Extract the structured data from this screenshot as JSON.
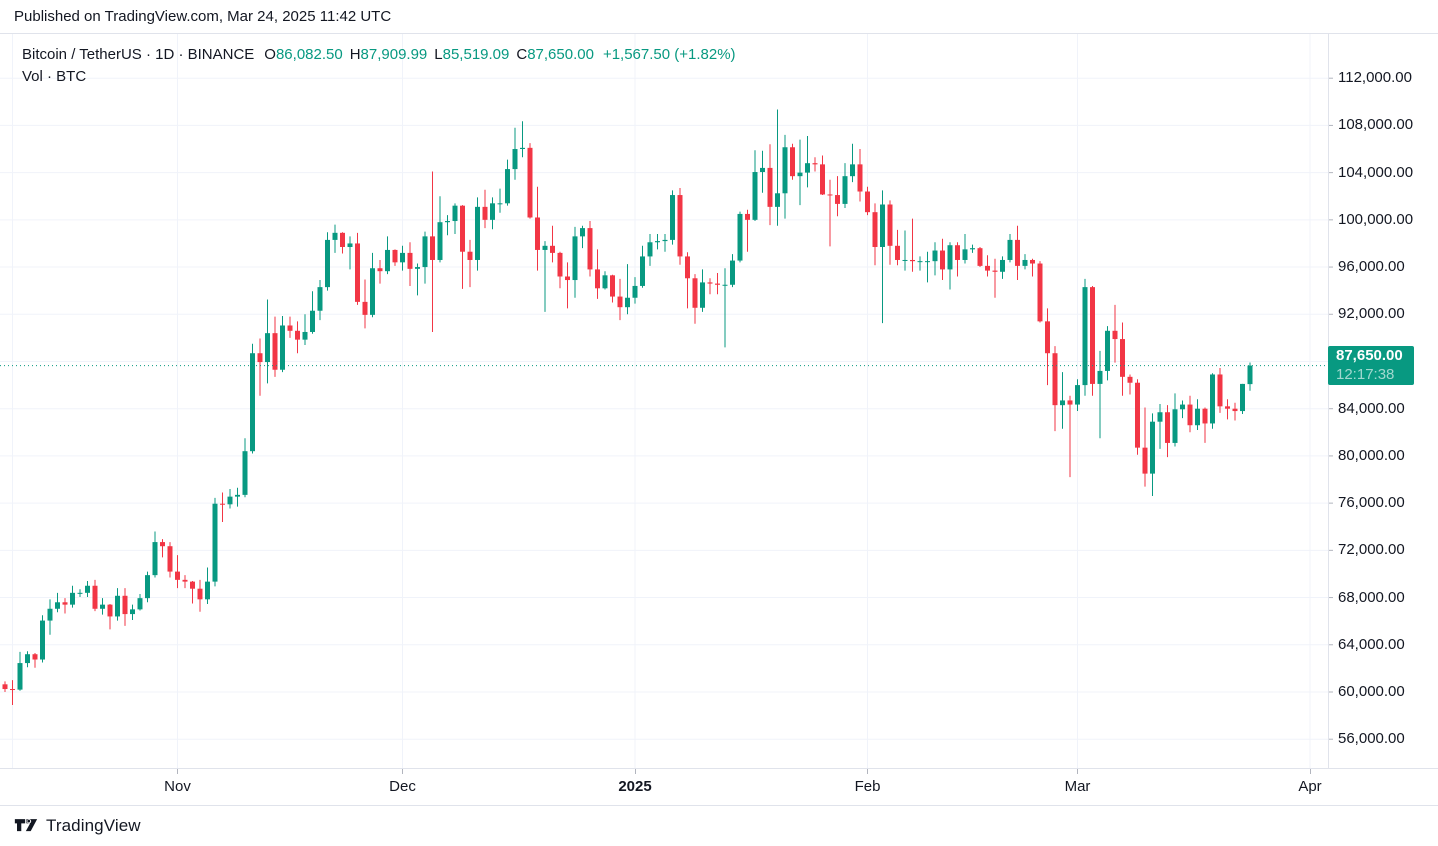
{
  "published_bar": {
    "text": "Published on TradingView.com, Mar 24, 2025 11:42 UTC"
  },
  "legend": {
    "title": "Bitcoin / TetherUS · 1D · BINANCE",
    "ohlc": [
      {
        "key": "O",
        "value": "86,082.50"
      },
      {
        "key": "H",
        "value": "87,909.99"
      },
      {
        "key": "L",
        "value": "85,519.09"
      },
      {
        "key": "C",
        "value": "87,650.00"
      }
    ],
    "change": "+1,567.50 (+1.82%)",
    "indicator": "Vol · BTC"
  },
  "price_label": {
    "price": "87,650.00",
    "countdown": "12:17:38",
    "value": 87650
  },
  "footer": {
    "brand": "TradingView"
  },
  "colors": {
    "up": "#089981",
    "down": "#f23645",
    "accent": "#089981",
    "text": "#131722",
    "grid": "#f0f3fa",
    "border": "#e0e3eb",
    "tick": "#b2b5be"
  },
  "chart_data": {
    "type": "candlestick",
    "title": "Bitcoin / TetherUS · 1D · BINANCE",
    "symbol": "Bitcoin / TetherUS",
    "interval": "1D",
    "exchange": "BINANCE",
    "last_price": 87650,
    "y_axis": {
      "min": 56000,
      "max": 112000,
      "tick_step": 4000,
      "ticks": [
        {
          "value": 112000,
          "label": "112,000.00"
        },
        {
          "value": 108000,
          "label": "108,000.00"
        },
        {
          "value": 104000,
          "label": "104,000.00"
        },
        {
          "value": 100000,
          "label": "100,000.00"
        },
        {
          "value": 96000,
          "label": "96,000.00"
        },
        {
          "value": 92000,
          "label": "92,000.00"
        },
        {
          "value": 88000,
          "label": "88,000.00"
        },
        {
          "value": 84000,
          "label": "84,000.00"
        },
        {
          "value": 80000,
          "label": "80,000.00"
        },
        {
          "value": 76000,
          "label": "76,000.00"
        },
        {
          "value": 72000,
          "label": "72,000.00"
        },
        {
          "value": 68000,
          "label": "68,000.00"
        },
        {
          "value": 64000,
          "label": "64,000.00"
        },
        {
          "value": 60000,
          "label": "60,000.00"
        },
        {
          "value": 56000,
          "label": "56,000.00"
        }
      ]
    },
    "x_axis": {
      "ticks": [
        {
          "label": "",
          "index": 1
        },
        {
          "label": "Nov",
          "index": 23
        },
        {
          "label": "Dec",
          "index": 53
        },
        {
          "label": "2025",
          "index": 84,
          "bold": true
        },
        {
          "label": "Feb",
          "index": 115
        },
        {
          "label": "Mar",
          "index": 143
        },
        {
          "label": "Apr",
          "index": 174
        }
      ]
    },
    "candles": [
      [
        "Oct 9",
        60650,
        60900,
        60000,
        60250
      ],
      [
        "Oct 10",
        60250,
        61000,
        58900,
        60200
      ],
      [
        "Oct 11",
        60200,
        63400,
        60100,
        62450
      ],
      [
        "Oct 12",
        62450,
        63450,
        62100,
        63200
      ],
      [
        "Oct 13",
        63200,
        63300,
        62050,
        62750
      ],
      [
        "Oct 14",
        62750,
        66500,
        62500,
        66050
      ],
      [
        "Oct 15",
        66050,
        67850,
        64850,
        67050
      ],
      [
        "Oct 16",
        67050,
        68400,
        66750,
        67600
      ],
      [
        "Oct 17",
        67600,
        67950,
        66650,
        67400
      ],
      [
        "Oct 18",
        67400,
        69000,
        67150,
        68400
      ],
      [
        "Oct 19",
        68400,
        68700,
        68050,
        68400
      ],
      [
        "Oct 20",
        68400,
        69400,
        68050,
        69000
      ],
      [
        "Oct 21",
        69000,
        69500,
        66850,
        67050
      ],
      [
        "Oct 22",
        67050,
        67950,
        66550,
        67400
      ],
      [
        "Oct 23",
        67400,
        67450,
        65300,
        66400
      ],
      [
        "Oct 24",
        66400,
        68800,
        66050,
        68150
      ],
      [
        "Oct 25",
        68150,
        68800,
        65600,
        66600
      ],
      [
        "Oct 26",
        66600,
        67400,
        66100,
        67000
      ],
      [
        "Oct 27",
        67000,
        68300,
        66900,
        67950
      ],
      [
        "Oct 28",
        67950,
        70200,
        67600,
        69900
      ],
      [
        "Oct 29",
        69900,
        73600,
        69700,
        72700
      ],
      [
        "Oct 30",
        72700,
        72950,
        71400,
        72350
      ],
      [
        "Oct 31",
        72350,
        72700,
        69700,
        70200
      ],
      [
        "Nov 1",
        70200,
        71600,
        68800,
        69500
      ],
      [
        "Nov 2",
        69500,
        69900,
        68800,
        69350
      ],
      [
        "Nov 3",
        69350,
        69400,
        67500,
        68750
      ],
      [
        "Nov 4",
        68750,
        69500,
        66800,
        67850
      ],
      [
        "Nov 5",
        67850,
        70550,
        67450,
        69350
      ],
      [
        "Nov 6",
        69350,
        76450,
        68950,
        75950
      ],
      [
        "Nov 7",
        75950,
        76900,
        74400,
        75900
      ],
      [
        "Nov 8",
        75900,
        77200,
        75550,
        76550
      ],
      [
        "Nov 9",
        76550,
        77300,
        75700,
        76700
      ],
      [
        "Nov 10",
        76700,
        81500,
        76500,
        80400
      ],
      [
        "Nov 11",
        80400,
        89500,
        80200,
        88700
      ],
      [
        "Nov 12",
        88700,
        89950,
        85100,
        87950
      ],
      [
        "Nov 13",
        87950,
        93250,
        86150,
        90400
      ],
      [
        "Nov 14",
        90400,
        91800,
        86700,
        87300
      ],
      [
        "Nov 15",
        87300,
        91850,
        87100,
        91050
      ],
      [
        "Nov 16",
        91050,
        91800,
        90000,
        90600
      ],
      [
        "Nov 17",
        90600,
        91400,
        88700,
        89850
      ],
      [
        "Nov 18",
        89850,
        92000,
        89400,
        90500
      ],
      [
        "Nov 19",
        90500,
        93950,
        90350,
        92300
      ],
      [
        "Nov 20",
        92300,
        94900,
        91500,
        94300
      ],
      [
        "Nov 21",
        94300,
        98950,
        94000,
        98300
      ],
      [
        "Nov 22",
        98300,
        99600,
        97200,
        98900
      ],
      [
        "Nov 23",
        98900,
        98950,
        97150,
        97700
      ],
      [
        "Nov 24",
        97700,
        98600,
        95800,
        98000
      ],
      [
        "Nov 25",
        98000,
        98900,
        92800,
        93050
      ],
      [
        "Nov 26",
        93050,
        94950,
        90800,
        91950
      ],
      [
        "Nov 27",
        91950,
        97200,
        91750,
        95900
      ],
      [
        "Nov 28",
        95900,
        96600,
        94600,
        95650
      ],
      [
        "Nov 29",
        95650,
        98600,
        95400,
        97450
      ],
      [
        "Nov 30",
        97450,
        97500,
        96100,
        96400
      ],
      [
        "Dec 1",
        96400,
        97800,
        95700,
        97200
      ],
      [
        "Dec 2",
        97200,
        98100,
        94400,
        95850
      ],
      [
        "Dec 3",
        95850,
        96300,
        93600,
        96000
      ],
      [
        "Dec 4",
        96000,
        99000,
        94600,
        98600
      ],
      [
        "Dec 5",
        98600,
        104100,
        90500,
        96600
      ],
      [
        "Dec 6",
        96600,
        102000,
        96400,
        99800
      ],
      [
        "Dec 7",
        99800,
        100400,
        98700,
        99900
      ],
      [
        "Dec 8",
        99900,
        101400,
        98800,
        101200
      ],
      [
        "Dec 9",
        101200,
        101250,
        94150,
        97300
      ],
      [
        "Dec 10",
        97300,
        98300,
        94300,
        96600
      ],
      [
        "Dec 11",
        96600,
        101900,
        95700,
        101100
      ],
      [
        "Dec 12",
        101100,
        102550,
        99300,
        100000
      ],
      [
        "Dec 13",
        100000,
        101900,
        99200,
        101400
      ],
      [
        "Dec 14",
        101400,
        102650,
        100600,
        101400
      ],
      [
        "Dec 15",
        101400,
        105100,
        101200,
        104300
      ],
      [
        "Dec 16",
        104300,
        107800,
        103400,
        106000
      ],
      [
        "Dec 17",
        106000,
        108350,
        105300,
        106100
      ],
      [
        "Dec 18",
        106100,
        106500,
        100100,
        100200
      ],
      [
        "Dec 19",
        100200,
        102800,
        95700,
        97450
      ],
      [
        "Dec 20",
        97450,
        98200,
        92200,
        97800
      ],
      [
        "Dec 21",
        97800,
        99500,
        96400,
        97200
      ],
      [
        "Dec 22",
        97200,
        97300,
        94200,
        95200
      ],
      [
        "Dec 23",
        95200,
        96400,
        92500,
        94900
      ],
      [
        "Dec 24",
        94900,
        99400,
        93400,
        98600
      ],
      [
        "Dec 25",
        98600,
        99500,
        97600,
        99300
      ],
      [
        "Dec 26",
        99300,
        99900,
        95200,
        95800
      ],
      [
        "Dec 27",
        95800,
        97500,
        93300,
        94200
      ],
      [
        "Dec 28",
        94200,
        95650,
        94100,
        95300
      ],
      [
        "Dec 29",
        95300,
        95350,
        93000,
        93500
      ],
      [
        "Dec 30",
        93500,
        95000,
        91500,
        92600
      ],
      [
        "Dec 31",
        92600,
        96250,
        92000,
        93400
      ],
      [
        "Jan 1",
        93400,
        95150,
        92900,
        94400
      ],
      [
        "Jan 2",
        94400,
        97800,
        94250,
        96900
      ],
      [
        "Jan 3",
        96900,
        98800,
        96100,
        98100
      ],
      [
        "Jan 4",
        98100,
        98800,
        97500,
        98200
      ],
      [
        "Jan 5",
        98200,
        98800,
        97300,
        98300
      ],
      [
        "Jan 6",
        98300,
        102500,
        97900,
        102100
      ],
      [
        "Jan 7",
        102100,
        102700,
        96200,
        96900
      ],
      [
        "Jan 8",
        96900,
        97250,
        92500,
        95050
      ],
      [
        "Jan 9",
        95050,
        95400,
        91200,
        92550
      ],
      [
        "Jan 10",
        92550,
        95800,
        92200,
        94700
      ],
      [
        "Jan 11",
        94700,
        95050,
        93700,
        94600
      ],
      [
        "Jan 12",
        94600,
        95500,
        93700,
        94500
      ],
      [
        "Jan 13",
        94500,
        95900,
        89200,
        94500
      ],
      [
        "Jan 14",
        94500,
        97100,
        94300,
        96550
      ],
      [
        "Jan 15",
        96550,
        100700,
        96400,
        100500
      ],
      [
        "Jan 16",
        100500,
        100850,
        97300,
        100000
      ],
      [
        "Jan 17",
        100000,
        105900,
        99900,
        104050
      ],
      [
        "Jan 18",
        104050,
        105850,
        102300,
        104400
      ],
      [
        "Jan 19",
        104400,
        106400,
        99550,
        101100
      ],
      [
        "Jan 20",
        101100,
        109350,
        99500,
        102250
      ],
      [
        "Jan 21",
        102250,
        107200,
        100100,
        106150
      ],
      [
        "Jan 22",
        106150,
        106450,
        103400,
        103700
      ],
      [
        "Jan 23",
        103700,
        106800,
        101250,
        104000
      ],
      [
        "Jan 24",
        104000,
        107100,
        102750,
        104800
      ],
      [
        "Jan 25",
        104800,
        105300,
        104100,
        104700
      ],
      [
        "Jan 26",
        104700,
        105450,
        102100,
        102150
      ],
      [
        "Jan 27",
        102150,
        103400,
        97750,
        102100
      ],
      [
        "Jan 28",
        102100,
        103700,
        100300,
        101350
      ],
      [
        "Jan 29",
        101350,
        104800,
        101000,
        103700
      ],
      [
        "Jan 30",
        103700,
        106450,
        103200,
        104700
      ],
      [
        "Jan 31",
        104700,
        106000,
        101550,
        102400
      ],
      [
        "Feb 1",
        102400,
        102800,
        100400,
        100650
      ],
      [
        "Feb 2",
        100650,
        101400,
        96150,
        97700
      ],
      [
        "Feb 3",
        97700,
        102500,
        91250,
        101300
      ],
      [
        "Feb 4",
        101300,
        101650,
        96200,
        97800
      ],
      [
        "Feb 5",
        97800,
        99150,
        96150,
        96600
      ],
      [
        "Feb 6",
        96600,
        99100,
        95700,
        96600
      ],
      [
        "Feb 7",
        96600,
        100100,
        95600,
        96500
      ],
      [
        "Feb 8",
        96500,
        96900,
        95700,
        96500
      ],
      [
        "Feb 9",
        96500,
        97300,
        94700,
        96500
      ],
      [
        "Feb 10",
        96500,
        98100,
        95300,
        97400
      ],
      [
        "Feb 11",
        97400,
        98400,
        94900,
        95800
      ],
      [
        "Feb 12",
        95800,
        98100,
        94100,
        97850
      ],
      [
        "Feb 13",
        97850,
        98100,
        95200,
        96600
      ],
      [
        "Feb 14",
        96600,
        98800,
        96300,
        97500
      ],
      [
        "Feb 15",
        97500,
        97900,
        97200,
        97600
      ],
      [
        "Feb 16",
        97600,
        97700,
        96000,
        96100
      ],
      [
        "Feb 17",
        96100,
        97000,
        95200,
        95700
      ],
      [
        "Feb 18",
        95700,
        96700,
        93400,
        95600
      ],
      [
        "Feb 19",
        95600,
        96900,
        95000,
        96600
      ],
      [
        "Feb 20",
        96600,
        98800,
        96400,
        98300
      ],
      [
        "Feb 21",
        98300,
        99500,
        94900,
        96100
      ],
      [
        "Feb 22",
        96100,
        97100,
        95800,
        96600
      ],
      [
        "Feb 23",
        96600,
        96700,
        95200,
        96300
      ],
      [
        "Feb 24",
        96300,
        96500,
        91300,
        91400
      ],
      [
        "Feb 25",
        91400,
        92500,
        86000,
        88700
      ],
      [
        "Feb 26",
        88700,
        89300,
        82100,
        84300
      ],
      [
        "Feb 27",
        84300,
        87100,
        82300,
        84700
      ],
      [
        "Feb 28",
        84700,
        85100,
        78200,
        84350
      ],
      [
        "Mar 1",
        84350,
        86500,
        83800,
        86000
      ],
      [
        "Mar 2",
        86000,
        95000,
        85100,
        94300
      ],
      [
        "Mar 3",
        94300,
        94400,
        85100,
        86100
      ],
      [
        "Mar 4",
        86100,
        88900,
        81500,
        87200
      ],
      [
        "Mar 5",
        87200,
        91000,
        86400,
        90600
      ],
      [
        "Mar 6",
        90600,
        92800,
        87900,
        89900
      ],
      [
        "Mar 7",
        89900,
        91300,
        85100,
        86700
      ],
      [
        "Mar 8",
        86700,
        86900,
        85200,
        86200
      ],
      [
        "Mar 9",
        86200,
        86500,
        80100,
        80700
      ],
      [
        "Mar 10",
        80700,
        84100,
        77400,
        78500
      ],
      [
        "Mar 11",
        78500,
        83600,
        76600,
        82900
      ],
      [
        "Mar 12",
        82900,
        84400,
        80600,
        83700
      ],
      [
        "Mar 13",
        83700,
        84300,
        79900,
        81100
      ],
      [
        "Mar 14",
        81100,
        85300,
        80800,
        83950
      ],
      [
        "Mar 15",
        83950,
        84700,
        83200,
        84350
      ],
      [
        "Mar 16",
        84350,
        85100,
        82000,
        82600
      ],
      [
        "Mar 17",
        82600,
        84800,
        82200,
        84000
      ],
      [
        "Mar 18",
        84000,
        84100,
        81100,
        82750
      ],
      [
        "Mar 19",
        82750,
        87000,
        82300,
        86900
      ],
      [
        "Mar 20",
        86900,
        87450,
        83650,
        84200
      ],
      [
        "Mar 21",
        84200,
        84800,
        83100,
        84000
      ],
      [
        "Mar 22",
        84000,
        84500,
        83000,
        83800
      ],
      [
        "Mar 23",
        83800,
        86100,
        83550,
        86100
      ],
      [
        "Mar 24",
        86082.5,
        87909.99,
        85519.09,
        87650
      ]
    ]
  }
}
